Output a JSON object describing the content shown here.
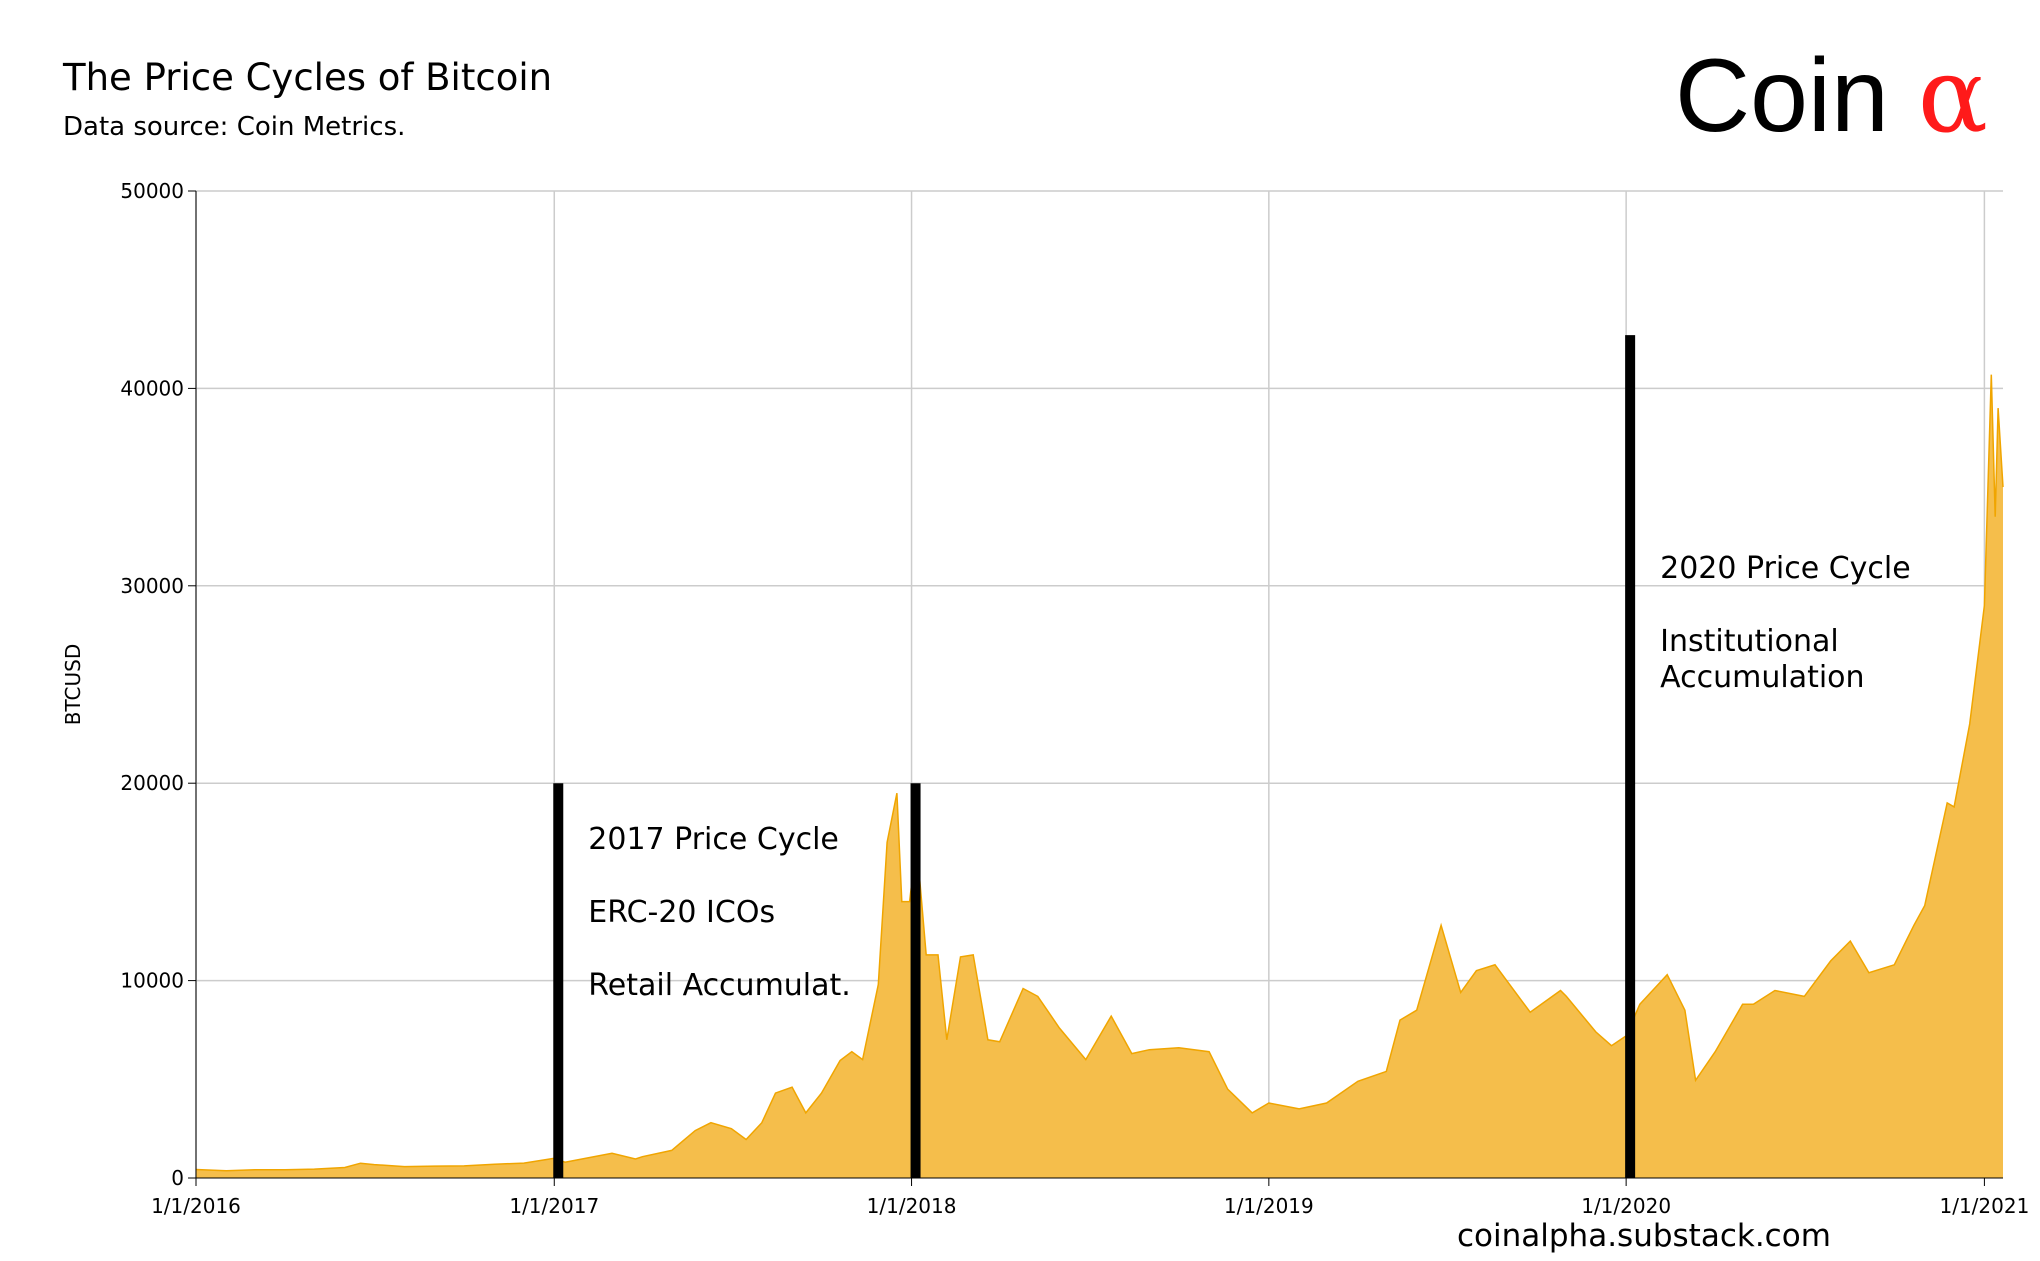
{
  "title": "The Price Cycles of Bitcoin",
  "subtitle": "Data source: Coin Metrics.",
  "logo": {
    "text": "Coin",
    "symbol": "α",
    "symbol_color": "#ff1a1a"
  },
  "footer": "coinalpha.substack.com",
  "chart_data": {
    "type": "area",
    "ylabel": "BTCUSD",
    "xlabel": "",
    "ylim": [
      0,
      50000
    ],
    "xlim": [
      "2016-01-01",
      "2021-01-20"
    ],
    "yticks": [
      0,
      10000,
      20000,
      30000,
      40000,
      50000
    ],
    "xticks": [
      {
        "date": "2016-01-01",
        "label": "1/1/2016"
      },
      {
        "date": "2017-01-01",
        "label": "1/1/2017"
      },
      {
        "date": "2018-01-01",
        "label": "1/1/2018"
      },
      {
        "date": "2019-01-01",
        "label": "1/1/2019"
      },
      {
        "date": "2020-01-01",
        "label": "1/1/2020"
      },
      {
        "date": "2021-01-01",
        "label": "1/1/2021"
      }
    ],
    "grid": true,
    "fill_color": "#f5be4b",
    "line_color": "#f0a500",
    "series": [
      {
        "x": [
          "2016-01-01",
          "2016-02-01",
          "2016-03-01",
          "2016-04-01",
          "2016-05-01",
          "2016-06-01",
          "2016-06-17",
          "2016-07-01",
          "2016-08-01",
          "2016-09-01",
          "2016-10-01",
          "2016-11-01",
          "2016-12-01",
          "2017-01-01",
          "2017-01-12",
          "2017-02-01",
          "2017-03-01",
          "2017-03-25",
          "2017-04-01",
          "2017-05-01",
          "2017-05-25",
          "2017-06-10",
          "2017-07-01",
          "2017-07-16",
          "2017-08-01",
          "2017-08-15",
          "2017-09-01",
          "2017-09-15",
          "2017-10-01",
          "2017-10-20",
          "2017-11-01",
          "2017-11-12",
          "2017-11-28",
          "2017-12-07",
          "2017-12-17",
          "2017-12-22",
          "2017-12-30",
          "2018-01-06",
          "2018-01-16",
          "2018-01-28",
          "2018-02-06",
          "2018-02-20",
          "2018-03-05",
          "2018-03-20",
          "2018-04-01",
          "2018-04-25",
          "2018-05-10",
          "2018-06-01",
          "2018-06-28",
          "2018-07-24",
          "2018-08-14",
          "2018-09-01",
          "2018-10-01",
          "2018-11-01",
          "2018-11-20",
          "2018-12-15",
          "2019-01-01",
          "2019-02-01",
          "2019-03-01",
          "2019-04-02",
          "2019-05-01",
          "2019-05-15",
          "2019-06-01",
          "2019-06-26",
          "2019-07-16",
          "2019-08-01",
          "2019-08-20",
          "2019-09-01",
          "2019-09-25",
          "2019-10-26",
          "2019-11-01",
          "2019-12-01",
          "2019-12-17",
          "2020-01-01",
          "2020-01-15",
          "2020-02-12",
          "2020-03-01",
          "2020-03-12",
          "2020-04-01",
          "2020-04-29",
          "2020-05-10",
          "2020-06-01",
          "2020-07-01",
          "2020-07-28",
          "2020-08-17",
          "2020-09-05",
          "2020-10-01",
          "2020-10-21",
          "2020-11-01",
          "2020-11-24",
          "2020-12-01",
          "2020-12-17",
          "2021-01-01",
          "2021-01-08",
          "2021-01-12",
          "2021-01-15",
          "2021-01-20"
        ],
        "values": [
          430,
          370,
          415,
          420,
          450,
          530,
          750,
          680,
          575,
          605,
          615,
          700,
          755,
          1000,
          800,
          990,
          1250,
          960,
          1080,
          1400,
          2400,
          2800,
          2500,
          1950,
          2800,
          4300,
          4600,
          3300,
          4300,
          5950,
          6400,
          6000,
          9800,
          17000,
          19500,
          14000,
          14000,
          17000,
          11300,
          11300,
          7000,
          11200,
          11300,
          7000,
          6900,
          9600,
          9200,
          7600,
          6000,
          8200,
          6300,
          6500,
          6600,
          6400,
          4500,
          3300,
          3800,
          3500,
          3800,
          4900,
          5400,
          8000,
          8500,
          12800,
          9400,
          10500,
          10800,
          10000,
          8400,
          9500,
          9200,
          7400,
          6700,
          7200,
          8800,
          10300,
          8500,
          4950,
          6400,
          8800,
          8800,
          9500,
          9200,
          11000,
          12000,
          10400,
          10800,
          12800,
          13800,
          19000,
          18800,
          23000,
          29000,
          40700,
          33500,
          39000,
          35000
        ]
      }
    ],
    "annotations": [
      {
        "date": "2017-01-01",
        "top": 20000,
        "lines": [
          "2017 Price Cycle",
          "ERC-20 ICOs",
          "Retail Accumulat."
        ]
      },
      {
        "date": "2018-01-01",
        "top": 20000,
        "lines": []
      },
      {
        "date": "2020-01-01",
        "top": 42700,
        "lines": [
          "2020 Price Cycle",
          "Institutional",
          "Accumulation"
        ]
      }
    ]
  }
}
